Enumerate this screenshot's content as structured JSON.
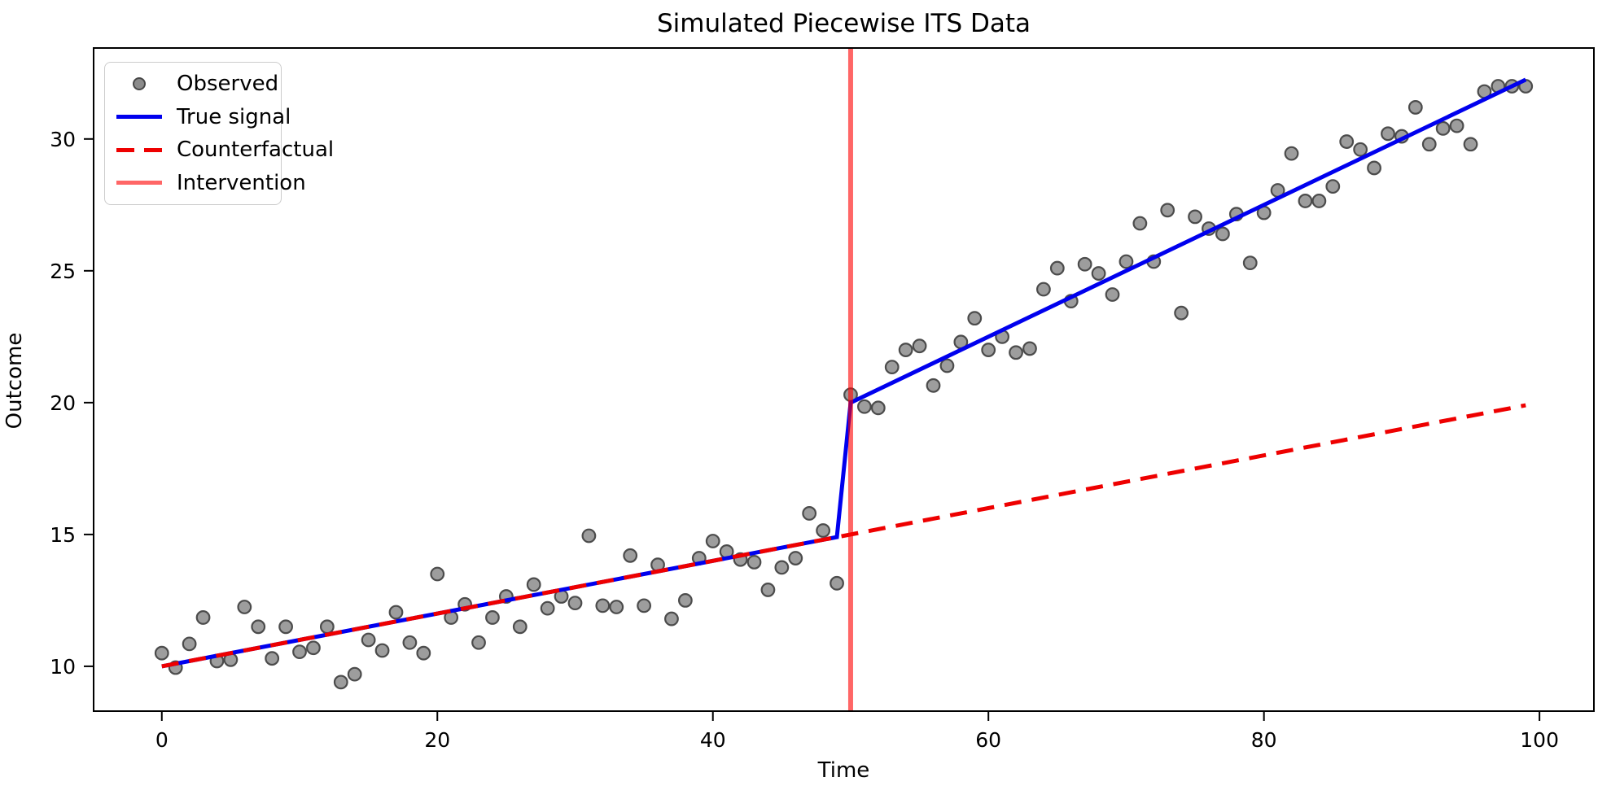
{
  "title": "Simulated Piecewise ITS Data",
  "axes": {
    "xlabel": "Time",
    "ylabel": "Outcome"
  },
  "legend": {
    "position": "upper left",
    "items": [
      {
        "label": "Observed",
        "swatch": "gray-dot-marker"
      },
      {
        "label": "True signal",
        "swatch": "blue-solid-line"
      },
      {
        "label": "Counterfactual",
        "swatch": "red-dashed-line"
      },
      {
        "label": "Intervention",
        "swatch": "salmon-solid-line"
      }
    ]
  },
  "colors": {
    "background": "#ffffff",
    "axes_frame": "#000000",
    "tick_text": "#000000",
    "observed_face": "#858585",
    "observed_edge": "#454545",
    "true_signal": "#0000ee",
    "counterfactual": "#ee0000",
    "intervention_stroke": "#ff0000",
    "intervention_legend": "#ff6666",
    "legend_border": "#cccccc"
  },
  "chart_data": {
    "type": "scatter",
    "title": "Simulated Piecewise ITS Data",
    "xlabel": "Time",
    "ylabel": "Outcome",
    "xlim": [
      -4.95,
      103.95
    ],
    "ylim": [
      8.3,
      33.45
    ],
    "xticks": [
      0,
      20,
      40,
      60,
      80,
      100
    ],
    "yticks": [
      10,
      15,
      20,
      25,
      30
    ],
    "grid": false,
    "legend_position": "upper left",
    "intervention_time": 50,
    "series": [
      {
        "name": "Observed",
        "type": "scatter",
        "x": [
          0,
          1,
          2,
          3,
          4,
          5,
          6,
          7,
          8,
          9,
          10,
          11,
          12,
          13,
          14,
          15,
          16,
          17,
          18,
          19,
          20,
          21,
          22,
          23,
          24,
          25,
          26,
          27,
          28,
          29,
          30,
          31,
          32,
          33,
          34,
          35,
          36,
          37,
          38,
          39,
          40,
          41,
          42,
          43,
          44,
          45,
          46,
          47,
          48,
          49,
          50,
          51,
          52,
          53,
          54,
          55,
          56,
          57,
          58,
          59,
          60,
          61,
          62,
          63,
          64,
          65,
          66,
          67,
          68,
          69,
          70,
          71,
          72,
          73,
          74,
          75,
          76,
          77,
          78,
          79,
          80,
          81,
          82,
          83,
          84,
          85,
          86,
          87,
          88,
          89,
          90,
          91,
          92,
          93,
          94,
          95,
          96,
          97,
          98,
          99
        ],
        "y": [
          10.5,
          9.95,
          10.85,
          11.85,
          10.2,
          10.25,
          12.25,
          11.5,
          10.3,
          11.5,
          10.55,
          10.7,
          11.5,
          9.4,
          9.7,
          11.0,
          10.6,
          12.05,
          10.9,
          10.5,
          13.5,
          11.85,
          12.35,
          10.9,
          11.85,
          12.65,
          11.5,
          13.1,
          12.2,
          12.65,
          12.4,
          14.95,
          12.3,
          12.25,
          14.2,
          12.3,
          13.85,
          11.8,
          12.5,
          14.1,
          14.75,
          14.35,
          14.05,
          13.95,
          12.9,
          13.75,
          14.1,
          15.8,
          15.15,
          13.15,
          20.3,
          19.85,
          19.8,
          21.35,
          22.0,
          22.15,
          20.65,
          21.4,
          22.3,
          23.2,
          22.0,
          22.5,
          21.9,
          22.05,
          24.3,
          25.1,
          23.85,
          25.25,
          24.9,
          24.1,
          25.35,
          26.8,
          25.35,
          27.3,
          23.4,
          27.05,
          26.6,
          26.4,
          27.15,
          25.3,
          27.2,
          28.05,
          29.45,
          27.65,
          27.65,
          28.2,
          29.9,
          29.6,
          28.9,
          30.2,
          30.1,
          31.2,
          29.8,
          30.4,
          30.5,
          29.8,
          31.8,
          32.0,
          32.0,
          32.0
        ]
      },
      {
        "name": "True signal",
        "type": "line",
        "x": [
          0,
          49,
          50,
          99
        ],
        "y": [
          10.0,
          14.9,
          20.0,
          32.25
        ]
      },
      {
        "name": "Counterfactual",
        "type": "line",
        "style": "dashed",
        "x": [
          0,
          99
        ],
        "y": [
          10.0,
          19.9
        ]
      },
      {
        "name": "Intervention",
        "type": "vline",
        "x": 50
      }
    ]
  }
}
